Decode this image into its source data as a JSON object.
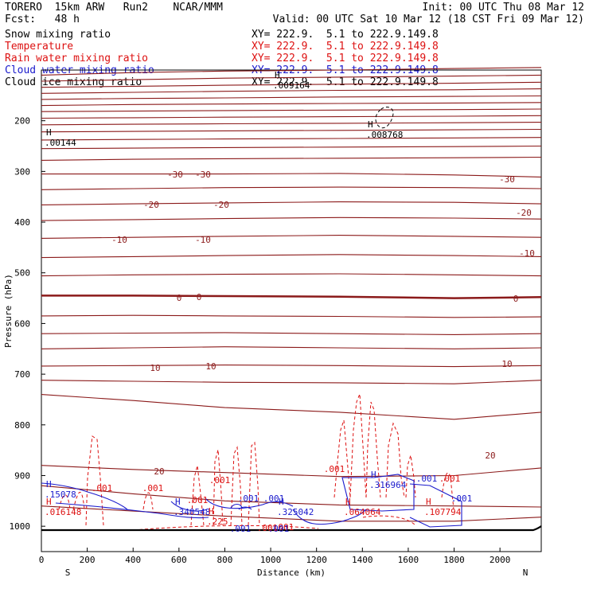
{
  "header": {
    "model": "TORERO  15km ARW   Run2    NCAR/MMM",
    "init": "Init: 00 UTC Thu 08 Mar 12",
    "fcst": "Fcst:   48 h",
    "valid": "Valid: 00 UTC Sat 10 Mar 12 (18 CST Fri 09 Mar 12)"
  },
  "colors": {
    "black": "#000000",
    "temperature": "#8b1a1a",
    "rain": "#dd1111",
    "cloud_water": "#1a1acc",
    "cloud_ice": "#000000"
  },
  "chart_data": {
    "type": "cross-section contour",
    "ylabel": "Pressure (hPa)",
    "xlabel": "Distance (km)",
    "xlim": [
      0,
      2180
    ],
    "ylim": [
      1050,
      100
    ],
    "x_ticks": [
      "0",
      "200",
      "400",
      "600",
      "800",
      "1000",
      "1200",
      "1400",
      "1600",
      "1800",
      "2000"
    ],
    "y_ticks": [
      "200",
      "300",
      "400",
      "500",
      "600",
      "700",
      "800",
      "900",
      "1000"
    ],
    "endpoints": {
      "left": "S",
      "right": "N"
    },
    "legend": [
      {
        "name": "Snow mixing ratio",
        "xy": "XY= 222.9.  5.1 to 222.9.149.8",
        "color": "#000000"
      },
      {
        "name": "Temperature",
        "xy": "XY= 222.9.  5.1 to 222.9.149.8",
        "color": "#dd1111"
      },
      {
        "name": "Rain water mixing ratio",
        "xy": "XY= 222.9.  5.1 to 222.9.149.8",
        "color": "#dd1111"
      },
      {
        "name": "Cloud water mixing ratio",
        "xy": "XY= 222.9.  5.1 to 222.9.149.8",
        "color": "#1a1acc"
      },
      {
        "name": "Cloud ice mixing ratio",
        "xy": "XY= 222.9.  5.1 to 222.9.149.8",
        "color": "#000000"
      }
    ],
    "temperature_lines": [
      {
        "p": [
          110,
          105,
          102,
          100,
          97,
          95
        ]
      },
      {
        "p": [
          122,
          119,
          116,
          114,
          112,
          110
        ]
      },
      {
        "p": [
          134,
          132,
          130,
          128,
          126,
          124
        ]
      },
      {
        "p": [
          146,
          144,
          142,
          140,
          139,
          137
        ]
      },
      {
        "p": [
          158,
          156,
          155,
          153,
          152,
          151
        ]
      },
      {
        "p": [
          170,
          168,
          167,
          166,
          165,
          164
        ]
      },
      {
        "p": [
          182,
          181,
          180,
          179,
          178,
          177
        ]
      },
      {
        "p": [
          195,
          194,
          193,
          192,
          191,
          190
        ]
      },
      {
        "p": [
          208,
          207,
          206,
          205,
          204,
          203
        ]
      },
      {
        "p": [
          222,
          221,
          220,
          219,
          218,
          217
        ]
      },
      {
        "p": [
          238,
          237,
          236,
          235,
          234,
          233
        ]
      },
      {
        "p": [
          255,
          254,
          253,
          252,
          251,
          250
        ]
      },
      {
        "p": [
          278,
          276,
          275,
          274,
          273,
          272
        ]
      },
      {
        "p": [
          305,
          305,
          305,
          304,
          307,
          311
        ],
        "label": "-30"
      },
      {
        "p": [
          336,
          334,
          332,
          331,
          332,
          334
        ]
      },
      {
        "p": [
          366,
          364,
          362,
          360,
          361,
          364
        ],
        "label": "-20"
      },
      {
        "p": [
          397,
          395,
          393,
          391,
          392,
          394
        ]
      },
      {
        "p": [
          432,
          430,
          428,
          426,
          428,
          430
        ],
        "label": "-10"
      },
      {
        "p": [
          470,
          468,
          466,
          464,
          466,
          468
        ]
      },
      {
        "p": [
          506,
          504,
          503,
          502,
          504,
          506
        ]
      },
      {
        "p": [
          545,
          545,
          546,
          547,
          550,
          548
        ],
        "label": "0"
      },
      {
        "p": [
          585,
          584,
          585,
          586,
          588,
          587
        ]
      },
      {
        "p": [
          620,
          619,
          618,
          620,
          622,
          620
        ]
      },
      {
        "p": [
          650,
          648,
          646,
          648,
          650,
          648
        ]
      },
      {
        "p": [
          684,
          683,
          682,
          683,
          685,
          683
        ],
        "label": "10"
      },
      {
        "p": [
          712,
          714,
          716,
          717,
          719,
          712
        ]
      },
      {
        "p": [
          740,
          752,
          766,
          775,
          789,
          775
        ]
      },
      {
        "p": [
          880,
          888,
          894,
          902,
          900,
          885
        ],
        "label": "20"
      },
      {
        "p": [
          920,
          936,
          950,
          958,
          960,
          962
        ]
      },
      {
        "p": [
          960,
          970,
          980,
          990,
          990,
          982
        ]
      }
    ],
    "temperature_labels": [
      "-30",
      "-30",
      "-30",
      "-20",
      "-20",
      "-20",
      "-10",
      "-10",
      "-10",
      "0",
      "0",
      "0",
      "10",
      "10",
      "10",
      "20",
      "20"
    ],
    "rain_labels": [
      ".001",
      ".001",
      ".001",
      ".001",
      ".001",
      ".001",
      ".001",
      ".001"
    ],
    "cloud_water_labels": [
      ".001",
      ".001",
      ".001",
      ".001",
      ".001",
      ".001"
    ],
    "max_labels": [
      {
        "text": "H",
        "value": ".00144",
        "color": "#000000"
      },
      {
        "text": "H",
        "value": ".008768",
        "color": "#000000"
      },
      {
        "text": "H",
        "value": ".009164",
        "color": "#000000"
      },
      {
        "text": "H",
        "value": ".15078",
        "color": "#1a1acc"
      },
      {
        "text": "H",
        "value": ".016148",
        "color": "#dd1111"
      },
      {
        "text": "H",
        "value": ".340548",
        "color": "#1a1acc"
      },
      {
        "text": "H",
        "value": ".225",
        "color": "#dd1111"
      },
      {
        "text": "H",
        "value": ".325042",
        "color": "#1a1acc"
      },
      {
        "text": "H",
        "value": ".064064",
        "color": "#dd1111"
      },
      {
        "text": "H",
        "value": ".316964",
        "color": "#1a1acc"
      },
      {
        "text": "H",
        "value": ".107794",
        "color": "#dd1111"
      }
    ]
  }
}
